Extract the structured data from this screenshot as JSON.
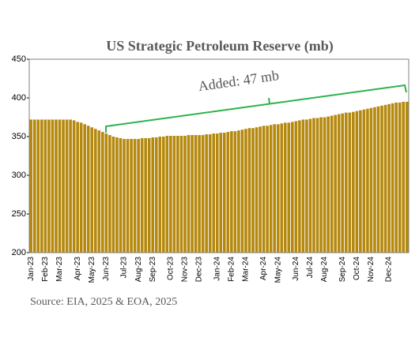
{
  "chart_data": {
    "type": "bar",
    "title": "US Strategic Petroleum Reserve  (mb)",
    "annotation": "Added: 47 mb",
    "source": "Source: EIA, 2025 & EOA, 2025",
    "color": "#b5890f",
    "ylim": [
      200,
      450
    ],
    "yticks": [
      200,
      250,
      300,
      350,
      400,
      450
    ],
    "categories": [
      "Jan-23",
      null,
      null,
      null,
      "Feb-23",
      null,
      null,
      null,
      "Mar-23",
      null,
      null,
      null,
      null,
      "Apr-23",
      null,
      null,
      null,
      "May-23",
      null,
      null,
      null,
      "Jun-23",
      null,
      null,
      null,
      null,
      "Jul-23",
      null,
      null,
      null,
      "Aug-23",
      null,
      null,
      null,
      "Sep-23",
      null,
      null,
      null,
      null,
      "Oct-23",
      null,
      null,
      null,
      "Nov-23",
      null,
      null,
      null,
      "Dec-23",
      null,
      null,
      null,
      null,
      "Jan-24",
      null,
      null,
      null,
      "Feb-24",
      null,
      null,
      null,
      "Mar-24",
      null,
      null,
      null,
      null,
      "Apr-24",
      null,
      null,
      null,
      "May-24",
      null,
      null,
      null,
      null,
      "Jun-24",
      null,
      null,
      null,
      "Jul-24",
      null,
      null,
      null,
      "Aug-24",
      null,
      null,
      null,
      null,
      "Sep-24",
      null,
      null,
      null,
      "Oct-24",
      null,
      null,
      null,
      "Nov-24",
      null,
      null,
      null,
      null,
      "Dec-24",
      null,
      null,
      null,
      null,
      null
    ],
    "values": [
      372,
      372,
      372,
      372,
      372,
      372,
      372,
      372,
      372,
      372,
      372,
      372,
      371,
      369,
      368,
      366,
      364,
      362,
      360,
      358,
      356,
      354,
      352,
      350,
      349,
      348,
      347,
      347,
      347,
      347,
      347,
      348,
      348,
      348,
      349,
      349,
      350,
      350,
      351,
      351,
      351,
      351,
      351,
      351,
      352,
      352,
      352,
      352,
      352,
      353,
      353,
      354,
      354,
      355,
      355,
      356,
      357,
      357,
      358,
      359,
      360,
      361,
      361,
      362,
      363,
      364,
      364,
      365,
      366,
      366,
      367,
      368,
      368,
      369,
      370,
      371,
      372,
      372,
      373,
      374,
      374,
      375,
      375,
      376,
      377,
      378,
      379,
      380,
      381,
      381,
      382,
      383,
      384,
      385,
      386,
      387,
      388,
      389,
      390,
      391,
      392,
      393,
      394,
      394,
      395,
      395
    ]
  }
}
